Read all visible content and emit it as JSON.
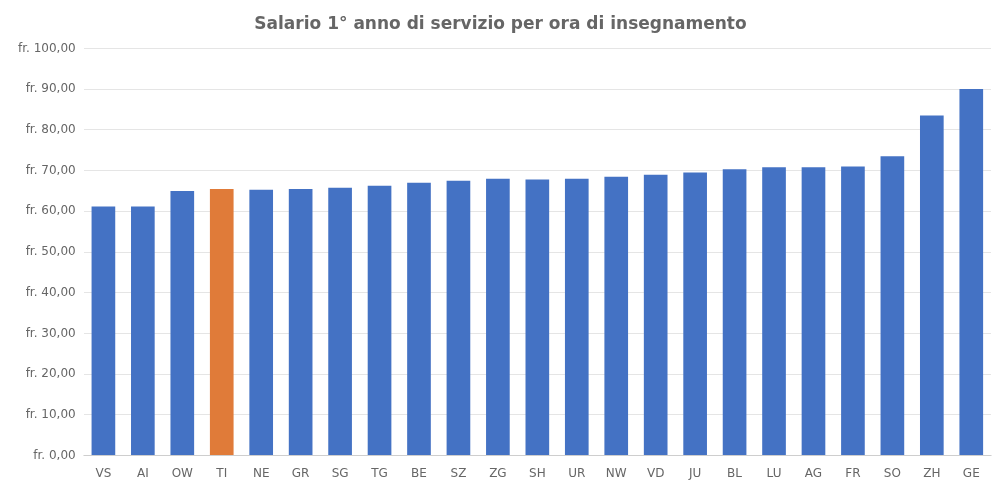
{
  "chart_data": {
    "type": "bar",
    "title": "Salario 1° anno di servizio per ora di insegnamento",
    "categories": [
      "VS",
      "AI",
      "OW",
      "TI",
      "NE",
      "GR",
      "SG",
      "TG",
      "BE",
      "SZ",
      "ZG",
      "SH",
      "UR",
      "NW",
      "VD",
      "JU",
      "BL",
      "LU",
      "AG",
      "FR",
      "SO",
      "ZH",
      "GE"
    ],
    "values": [
      61.2,
      61.2,
      65.0,
      65.5,
      65.3,
      65.5,
      65.8,
      66.3,
      67.0,
      67.5,
      68.0,
      67.8,
      68.0,
      68.5,
      69.0,
      69.5,
      70.3,
      70.8,
      70.8,
      71.0,
      73.5,
      83.5,
      90.0
    ],
    "colors": [
      "#4472c4",
      "#4472c4",
      "#4472c4",
      "#e07b39",
      "#4472c4",
      "#4472c4",
      "#4472c4",
      "#4472c4",
      "#4472c4",
      "#4472c4",
      "#4472c4",
      "#4472c4",
      "#4472c4",
      "#4472c4",
      "#4472c4",
      "#4472c4",
      "#4472c4",
      "#4472c4",
      "#4472c4",
      "#4472c4",
      "#4472c4",
      "#4472c4",
      "#4472c4"
    ],
    "ylim": [
      0,
      100
    ],
    "yticks": [
      {
        "value": 0,
        "label": "fr. 0,00"
      },
      {
        "value": 10,
        "label": "fr. 10,00"
      },
      {
        "value": 20,
        "label": "fr. 20,00"
      },
      {
        "value": 30,
        "label": "fr. 30,00"
      },
      {
        "value": 40,
        "label": "fr. 40,00"
      },
      {
        "value": 50,
        "label": "fr. 50,00"
      },
      {
        "value": 60,
        "label": "fr. 60,00"
      },
      {
        "value": 70,
        "label": "fr. 70,00"
      },
      {
        "value": 80,
        "label": "fr. 80,00"
      },
      {
        "value": 90,
        "label": "fr. 90,00"
      },
      {
        "value": 100,
        "label": "fr. 100,00"
      }
    ],
    "grid": true
  }
}
